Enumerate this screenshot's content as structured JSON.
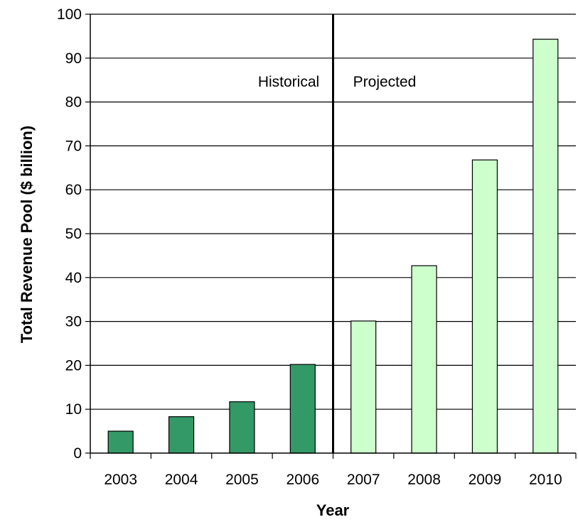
{
  "chart_data": {
    "type": "bar",
    "title": "",
    "xlabel": "Year",
    "ylabel": "Total Revenue Pool ($ billion)",
    "ylim": [
      0,
      100
    ],
    "yticks": [
      0,
      10,
      20,
      30,
      40,
      50,
      60,
      70,
      80,
      90,
      100
    ],
    "grid": true,
    "categories": [
      "2003",
      "2004",
      "2005",
      "2006",
      "2007",
      "2008",
      "2009",
      "2010"
    ],
    "values": [
      5,
      8.3,
      11.7,
      20.2,
      30.1,
      42.7,
      66.8,
      94.3
    ],
    "period": [
      "historical",
      "historical",
      "historical",
      "historical",
      "projected",
      "projected",
      "projected",
      "projected"
    ],
    "annotations": {
      "historical_label": "Historical",
      "projected_label": "Projected",
      "divider_between": [
        "2006",
        "2007"
      ]
    },
    "colors": {
      "historical": "#339966",
      "projected": "#ccffcc",
      "bar_outline": "#000000",
      "gridline": "#000000"
    }
  }
}
